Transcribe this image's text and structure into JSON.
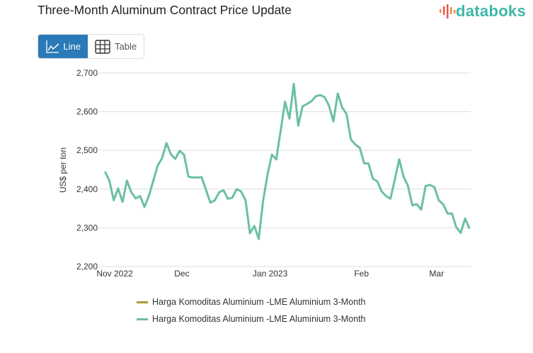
{
  "header": {
    "title": "Three-Month Aluminum Contract Price Update",
    "logo_text": "databoks"
  },
  "toggle": {
    "line_label": "Line",
    "table_label": "Table",
    "active": "Line",
    "line_icon": "line-chart-icon",
    "table_icon": "table-grid-icon"
  },
  "colors": {
    "accent": "#2a7ab8",
    "series_1": "#a89a3c",
    "series_2": "#6cbfa3",
    "logo": "#3fb6a8"
  },
  "chart_data": {
    "type": "line",
    "title": "",
    "ylabel": "US$ per ton",
    "xlabel": "",
    "ylim": [
      2200,
      2700
    ],
    "yticks": [
      "2,200",
      "2,300",
      "2,400",
      "2,500",
      "2,600",
      "2,700"
    ],
    "ytick_values": [
      2200,
      2300,
      2400,
      2500,
      2600,
      2700
    ],
    "xticks": [
      {
        "label": "Nov 2022",
        "index": -1.3
      },
      {
        "label": "Dec",
        "index": 17.5
      },
      {
        "label": "Jan 2023",
        "index": 37.6
      },
      {
        "label": "Feb",
        "index": 58.4
      },
      {
        "label": "Mar",
        "index": 75.5
      }
    ],
    "grid": true,
    "legend_position": "bottom",
    "series": [
      {
        "name": "Harga Komoditas Aluminium -LME Aluminium 3-Month",
        "color": "#a89a3c",
        "values": []
      },
      {
        "name": "Harga Komoditas Aluminium -LME Aluminium 3-Month",
        "color": "#6cbfa3",
        "values": [
          2445,
          2422,
          2371,
          2402,
          2367,
          2422,
          2392,
          2376,
          2382,
          2354,
          2382,
          2422,
          2461,
          2480,
          2519,
          2490,
          2478,
          2499,
          2489,
          2432,
          2430,
          2430,
          2431,
          2398,
          2365,
          2371,
          2392,
          2397,
          2375,
          2378,
          2400,
          2394,
          2371,
          2286,
          2305,
          2271,
          2370,
          2437,
          2489,
          2477,
          2551,
          2626,
          2582,
          2672,
          2564,
          2614,
          2620,
          2627,
          2640,
          2643,
          2638,
          2616,
          2575,
          2647,
          2611,
          2594,
          2528,
          2515,
          2507,
          2467,
          2466,
          2427,
          2420,
          2394,
          2382,
          2375,
          2425,
          2477,
          2432,
          2408,
          2358,
          2361,
          2347,
          2408,
          2411,
          2405,
          2371,
          2361,
          2337,
          2337,
          2301,
          2287,
          2324,
          2298
        ]
      }
    ]
  }
}
